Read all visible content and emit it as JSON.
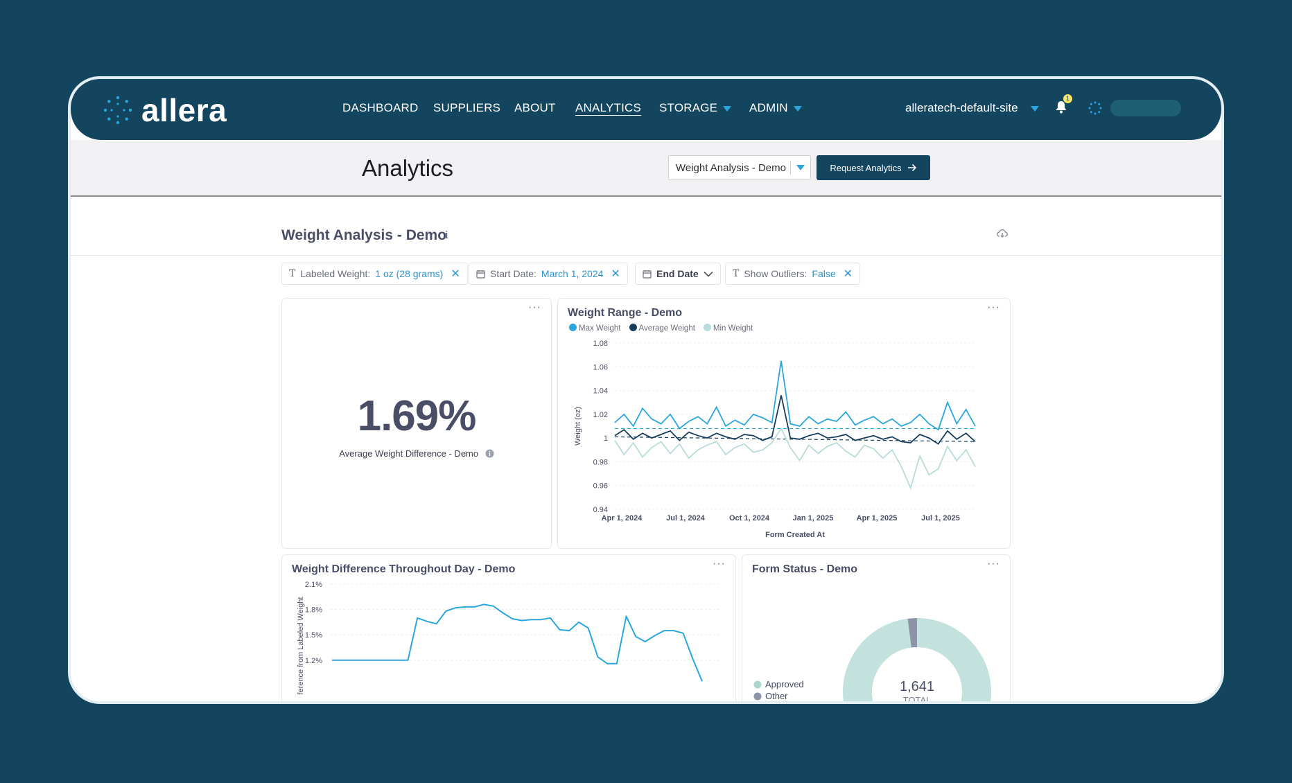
{
  "app": {
    "name": "allera"
  },
  "nav": {
    "items": [
      "DASHBOARD",
      "SUPPLIERS",
      "ABOUT",
      "ANALYTICS",
      "STORAGE",
      "ADMIN"
    ],
    "active": "ANALYTICS",
    "site": "alleratech-default-site",
    "notification_count": "1"
  },
  "page": {
    "title": "Analytics",
    "selector_value": "Weight Analysis - Demo",
    "request_button": "Request Analytics"
  },
  "dashboard": {
    "title": "Weight Analysis - Demo",
    "info_icon": "i",
    "filters": [
      {
        "label": "Labeled Weight:",
        "value": "1 oz (28 grams)"
      },
      {
        "label": "Start Date:",
        "value": "March 1, 2024"
      },
      {
        "label": "End Date"
      },
      {
        "label": "Show Outliers:",
        "value": "False"
      }
    ]
  },
  "metric_card": {
    "value": "1.69%",
    "label": "Average Weight Difference - Demo",
    "menu": "···"
  },
  "cards": {
    "weight_range_title": "Weight Range - Demo",
    "throughput_title": "Weight Difference Throughout Day - Demo",
    "form_status_title": "Form Status - Demo",
    "menu": "···"
  },
  "colors": {
    "nav_bg": "#13455f",
    "accent": "#2aa6dc",
    "max_weight": "#2aa6dc",
    "avg_weight": "#163e5c",
    "min_weight": "#b8dcda",
    "donut_approved": "#c3e2dd",
    "donut_other": "#8d94a8"
  },
  "chart_data": [
    {
      "type": "line",
      "title": "Weight Range - Demo",
      "xlabel": "Form Created At",
      "ylabel": "Weight (oz)",
      "ylim": [
        0.94,
        1.08
      ],
      "yticks": [
        "1.08",
        "1.06",
        "1.04",
        "1.02",
        "1",
        "0.98",
        "0.96",
        "0.94"
      ],
      "xticks": [
        "Apr 1, 2024",
        "Jul 1, 2024",
        "Oct 1, 2024",
        "Jan 1, 2025",
        "Apr 1, 2025",
        "Jul 1, 2025"
      ],
      "legend_position": "top-left",
      "grid": true,
      "series": [
        {
          "name": "Max Weight",
          "values": [
            1.013,
            1.02,
            1.01,
            1.025,
            1.016,
            1.012,
            1.02,
            1.008,
            1.014,
            1.018,
            1.012,
            1.026,
            1.01,
            1.015,
            1.011,
            1.02,
            1.017,
            1.013,
            1.065,
            1.012,
            1.01,
            1.018,
            1.012,
            1.016,
            1.014,
            1.022,
            1.011,
            1.015,
            1.018,
            1.012,
            1.016,
            1.01,
            1.013,
            1.02,
            1.012,
            1.007,
            1.03,
            1.012,
            1.024,
            1.01
          ]
        },
        {
          "name": "Average Weight",
          "values": [
            1.002,
            1.007,
            0.999,
            1.004,
            1.0,
            1.003,
            1.006,
            0.998,
            1.005,
            1.002,
            1.0,
            1.004,
            1.001,
            0.999,
            1.003,
            1.002,
            0.998,
            1.001,
            1.036,
            1.0,
            0.999,
            1.002,
            1.004,
            1.0,
            1.001,
            1.003,
            0.998,
            1.0,
            1.002,
            0.999,
            1.001,
            0.997,
            0.996,
            1.003,
            1.0,
            0.995,
            1.006,
            0.999,
            1.004,
            0.997
          ]
        },
        {
          "name": "Min Weight",
          "values": [
            0.998,
            0.986,
            0.996,
            0.984,
            0.992,
            0.997,
            0.987,
            0.995,
            0.983,
            0.99,
            0.994,
            0.997,
            0.986,
            0.992,
            0.995,
            0.988,
            0.99,
            0.996,
            1.008,
            0.992,
            0.981,
            0.994,
            0.987,
            0.993,
            0.996,
            0.989,
            0.984,
            0.994,
            0.991,
            0.983,
            0.99,
            0.976,
            0.958,
            0.985,
            0.969,
            0.974,
            0.993,
            0.981,
            0.99,
            0.976
          ]
        }
      ]
    },
    {
      "type": "line",
      "title": "Weight Difference Throughout Day - Demo",
      "ylabel": "ference from Labeled Weight",
      "yticks": [
        "2.1%",
        "1.8%",
        "1.5%",
        "1.2%"
      ],
      "grid": true,
      "series": [
        {
          "values": [
            1.2,
            1.2,
            1.2,
            1.2,
            1.2,
            1.2,
            1.2,
            1.2,
            1.2,
            1.7,
            1.66,
            1.63,
            1.78,
            1.82,
            1.83,
            1.83,
            1.86,
            1.84,
            1.76,
            1.69,
            1.67,
            1.68,
            1.68,
            1.7,
            1.56,
            1.55,
            1.65,
            1.58,
            1.24,
            1.16,
            1.16,
            1.72,
            1.48,
            1.42,
            1.49,
            1.55,
            1.55,
            1.52,
            1.22,
            0.95
          ]
        }
      ]
    },
    {
      "type": "pie",
      "title": "Form Status - Demo",
      "categories": [
        "Approved",
        "Other"
      ],
      "values": [
        1608,
        33
      ],
      "center_value": "1,641",
      "center_label": "TOTAL",
      "legend_position": "left"
    }
  ]
}
